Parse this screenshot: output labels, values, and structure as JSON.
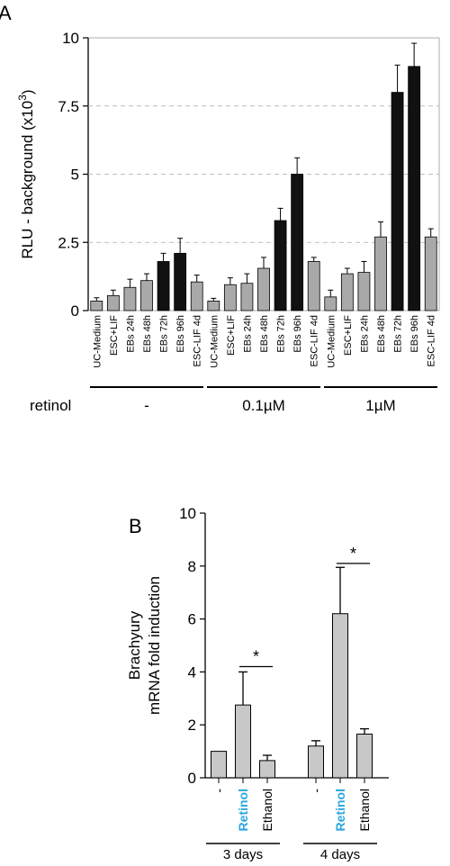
{
  "panels": {
    "a_label": "A",
    "b_label": "B"
  },
  "colors": {
    "black_bar": "#111111",
    "gray_bar": "#a9a9a9",
    "light_bar": "#c8c8c8",
    "retinol_label": "#2aa7df"
  },
  "chart_data": [
    {
      "type": "bar",
      "panel": "A",
      "ylabel": "RLU - background (x10",
      "ylabel_sup": "3",
      "ylabel_close": ")",
      "ylim": [
        0,
        10
      ],
      "yticks": [
        0,
        2.5,
        5,
        7.5,
        10
      ],
      "ytick_labels": [
        "0",
        "2.5",
        "5",
        "7.5",
        "10"
      ],
      "grid": "dashed horizontal at 2.5, 5, 7.5",
      "categories": [
        "UC-Medium",
        "ESC+LIF",
        "EBs 24h",
        "EBs 48h",
        "EBs 72h",
        "EBs 96h",
        "ESC-LIF 4d",
        "UC-Medium",
        "ESC+LIF",
        "EBs 24h",
        "EBs 48h",
        "EBs 72h",
        "EBs 96h",
        "ESC-LIF 4d",
        "UC-Medium",
        "ESC+LIF",
        "EBs 24h",
        "EBs 48h",
        "EBs 72h",
        "EBs 96h",
        "ESC-LIF 4d"
      ],
      "values": [
        0.35,
        0.55,
        0.85,
        1.1,
        1.8,
        2.1,
        1.05,
        0.35,
        0.95,
        1.0,
        1.55,
        3.3,
        5.0,
        1.8,
        0.5,
        1.35,
        1.4,
        2.7,
        8.0,
        8.95,
        2.7
      ],
      "errors": [
        0.12,
        0.2,
        0.3,
        0.25,
        0.3,
        0.55,
        0.25,
        0.1,
        0.25,
        0.35,
        0.4,
        0.45,
        0.6,
        0.15,
        0.25,
        0.2,
        0.4,
        0.55,
        1.0,
        0.85,
        0.3
      ],
      "bar_style": [
        "gray",
        "gray",
        "gray",
        "gray",
        "black",
        "black",
        "gray",
        "gray",
        "gray",
        "gray",
        "gray",
        "black",
        "black",
        "gray",
        "gray",
        "gray",
        "gray",
        "gray",
        "black",
        "black",
        "gray"
      ],
      "group_title": "retinol",
      "groups": [
        {
          "label": "-",
          "start": 0,
          "end": 6
        },
        {
          "label": "0.1µM",
          "start": 7,
          "end": 13
        },
        {
          "label": "1µM",
          "start": 14,
          "end": 20
        }
      ]
    },
    {
      "type": "bar",
      "panel": "B",
      "ylabel_line1": "Brachyury",
      "ylabel_line2": "mRNA fold induction",
      "ylim": [
        0,
        10
      ],
      "yticks": [
        0,
        2,
        4,
        6,
        8,
        10
      ],
      "ytick_labels": [
        "0",
        "2",
        "4",
        "6",
        "8",
        "10"
      ],
      "categories": [
        "-",
        "Retinol",
        "Ethanol",
        "-",
        "Retinol",
        "Ethanol"
      ],
      "values": [
        1.0,
        2.75,
        0.65,
        1.2,
        6.2,
        1.65
      ],
      "errors": [
        0.0,
        1.25,
        0.2,
        0.2,
        1.75,
        0.2
      ],
      "highlight": [
        false,
        true,
        false,
        false,
        true,
        false
      ],
      "significance": [
        {
          "from": 1,
          "to": 2,
          "y": 4.2,
          "label": "*"
        },
        {
          "from": 4,
          "to": 5,
          "y": 8.1,
          "label": "*"
        }
      ],
      "groups": [
        {
          "label": "3 days",
          "start": 0,
          "end": 2
        },
        {
          "label": "4 days",
          "start": 3,
          "end": 5
        }
      ]
    }
  ]
}
